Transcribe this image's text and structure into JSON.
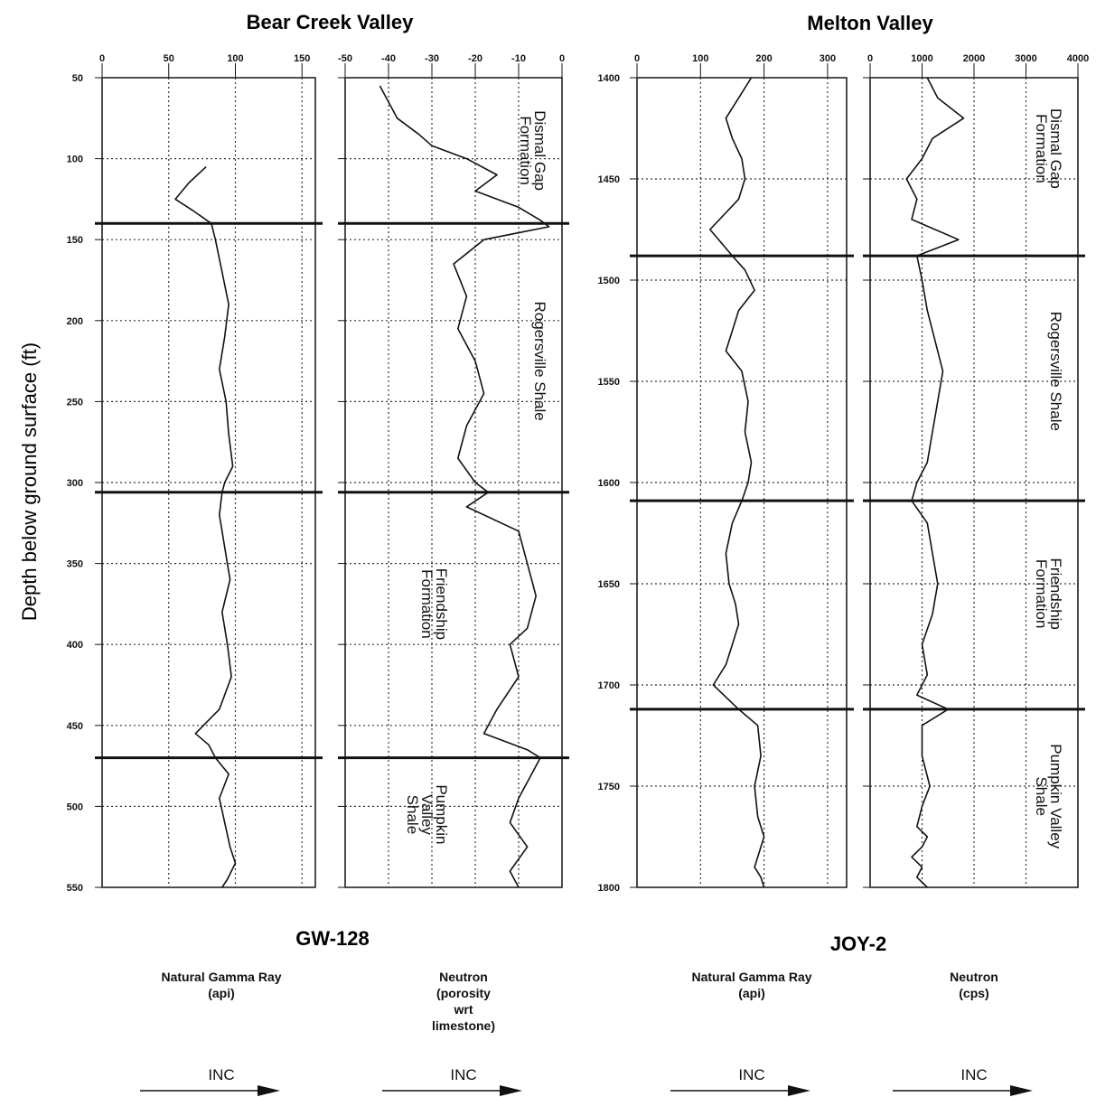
{
  "titles": {
    "left": "Bear Creek Valley",
    "right": "Melton Valley"
  },
  "ylabel": "Depth below ground surface (ft)",
  "wells": [
    {
      "name": "GW-128",
      "group": "left"
    },
    {
      "name": "JOY-2",
      "group": "right"
    }
  ],
  "arrow_label": "INC",
  "colors": {
    "line": "#111111",
    "grid": "#333333",
    "background": "#ffffff"
  },
  "chart_data": [
    {
      "type": "line",
      "panel": "gw128-gamma",
      "well": "GW-128",
      "caption": [
        "Natural Gamma Ray",
        "(api)"
      ],
      "x_ticks": [
        "0",
        "50",
        "100",
        "150"
      ],
      "xlim": [
        0,
        160
      ],
      "y_ticks": [
        "50",
        "100",
        "150",
        "200",
        "250",
        "300",
        "350",
        "400",
        "450",
        "500",
        "550"
      ],
      "ylim": [
        50,
        550
      ],
      "formation_boundaries": [
        140,
        306,
        470
      ],
      "formations": [],
      "series": [
        {
          "x": [
            78,
            65,
            55,
            68,
            82,
            85,
            90,
            95,
            92,
            88,
            93,
            95,
            98,
            92,
            90,
            88,
            92,
            96,
            90,
            94,
            97,
            88,
            70,
            80,
            85,
            95,
            88,
            92,
            96,
            100,
            94,
            90
          ],
          "y": [
            105,
            115,
            125,
            132,
            140,
            150,
            170,
            190,
            210,
            230,
            250,
            270,
            290,
            300,
            306,
            320,
            340,
            360,
            380,
            400,
            420,
            440,
            455,
            462,
            470,
            480,
            495,
            510,
            525,
            535,
            545,
            550
          ]
        }
      ]
    },
    {
      "type": "line",
      "panel": "gw128-neutron",
      "well": "GW-128",
      "caption": [
        "Neutron",
        "(porosity",
        "wrt",
        "limestone)"
      ],
      "x_ticks": [
        "-50",
        "-40",
        "-30",
        "-20",
        "-10",
        "0"
      ],
      "xlim": [
        -50,
        0
      ],
      "y_ticks": [
        "50",
        "100",
        "150",
        "200",
        "250",
        "300",
        "350",
        "400",
        "450",
        "500",
        "550"
      ],
      "ylim": [
        50,
        550
      ],
      "formation_boundaries": [
        140,
        306,
        470
      ],
      "formations": [
        {
          "lines": [
            "Dismal Gap",
            "Formation"
          ],
          "ymid": 95,
          "xside": "right"
        },
        {
          "lines": [
            "Rogersville Shale"
          ],
          "ymid": 225,
          "xside": "right"
        },
        {
          "lines": [
            "Friendship",
            "Formation"
          ],
          "ymid": 375,
          "xside": "mid"
        },
        {
          "lines": [
            "Pumpkin",
            "Valley",
            "Shale"
          ],
          "ymid": 505,
          "xside": "mid"
        }
      ],
      "series": [
        {
          "x": [
            -42,
            -40,
            -38,
            -33,
            -30,
            -22,
            -15,
            -20,
            -10,
            -5,
            -3,
            -18,
            -25,
            -22,
            -24,
            -20,
            -18,
            -22,
            -24,
            -20,
            -17,
            -22,
            -10,
            -8,
            -6,
            -8,
            -12,
            -10,
            -15,
            -18,
            -8,
            -5,
            -7,
            -10,
            -12,
            -8,
            -12,
            -10
          ],
          "y": [
            55,
            65,
            75,
            85,
            92,
            100,
            110,
            120,
            130,
            138,
            142,
            150,
            165,
            185,
            205,
            225,
            245,
            265,
            285,
            300,
            306,
            315,
            330,
            350,
            370,
            390,
            400,
            420,
            440,
            455,
            465,
            470,
            480,
            495,
            510,
            525,
            540,
            550
          ]
        }
      ]
    },
    {
      "type": "line",
      "panel": "joy2-gamma",
      "well": "JOY-2",
      "caption": [
        "Natural Gamma Ray",
        "(api)"
      ],
      "x_ticks": [
        "0",
        "100",
        "200",
        "300"
      ],
      "xlim": [
        0,
        330
      ],
      "y_ticks": [
        "1400",
        "1450",
        "1500",
        "1550",
        "1600",
        "1650",
        "1700",
        "1750",
        "1800"
      ],
      "ylim": [
        1400,
        1800
      ],
      "formation_boundaries": [
        1488,
        1609,
        1712
      ],
      "formations": [],
      "series": [
        {
          "x": [
            180,
            160,
            140,
            150,
            165,
            170,
            160,
            115,
            150,
            170,
            185,
            160,
            150,
            140,
            165,
            175,
            170,
            180,
            175,
            165,
            150,
            140,
            145,
            155,
            160,
            150,
            140,
            120,
            160,
            190,
            195,
            185,
            190,
            200,
            195,
            185,
            195,
            200
          ],
          "y": [
            1400,
            1410,
            1420,
            1430,
            1440,
            1450,
            1460,
            1475,
            1488,
            1495,
            1505,
            1515,
            1525,
            1535,
            1545,
            1560,
            1575,
            1590,
            1600,
            1609,
            1620,
            1635,
            1650,
            1660,
            1670,
            1680,
            1690,
            1700,
            1712,
            1720,
            1735,
            1750,
            1765,
            1775,
            1780,
            1790,
            1795,
            1800
          ]
        }
      ]
    },
    {
      "type": "line",
      "panel": "joy2-neutron",
      "well": "JOY-2",
      "caption": [
        "Neutron",
        "(cps)"
      ],
      "x_ticks": [
        "0",
        "1000",
        "2000",
        "3000",
        "4000"
      ],
      "xlim": [
        0,
        4000
      ],
      "y_ticks": [
        "1400",
        "1450",
        "1500",
        "1550",
        "1600",
        "1650",
        "1700",
        "1750",
        "1800"
      ],
      "ylim": [
        1400,
        1800
      ],
      "formation_boundaries": [
        1488,
        1609,
        1712
      ],
      "formations": [
        {
          "lines": [
            "Dismal Gap",
            "Formation"
          ],
          "ymid": 1435,
          "xside": "right"
        },
        {
          "lines": [
            "Rogersville Shale"
          ],
          "ymid": 1545,
          "xside": "right"
        },
        {
          "lines": [
            "Friendship",
            "Formation"
          ],
          "ymid": 1655,
          "xside": "right"
        },
        {
          "lines": [
            "Pumpkin Valley",
            "Shale"
          ],
          "ymid": 1755,
          "xside": "right"
        }
      ],
      "series": [
        {
          "x": [
            1100,
            1300,
            1800,
            1200,
            1000,
            700,
            900,
            800,
            1700,
            900,
            1000,
            1100,
            1250,
            1400,
            1300,
            1200,
            1100,
            900,
            800,
            1100,
            1200,
            1300,
            1200,
            1000,
            1100,
            900,
            1500,
            1000,
            1000,
            1150,
            1000,
            900,
            1100,
            1000,
            800,
            1000,
            900,
            1100
          ],
          "y": [
            1400,
            1410,
            1420,
            1430,
            1440,
            1450,
            1460,
            1470,
            1480,
            1488,
            1500,
            1515,
            1530,
            1545,
            1560,
            1575,
            1590,
            1600,
            1609,
            1620,
            1635,
            1650,
            1665,
            1680,
            1695,
            1705,
            1712,
            1720,
            1735,
            1750,
            1760,
            1770,
            1775,
            1780,
            1785,
            1790,
            1795,
            1800
          ]
        }
      ]
    }
  ]
}
